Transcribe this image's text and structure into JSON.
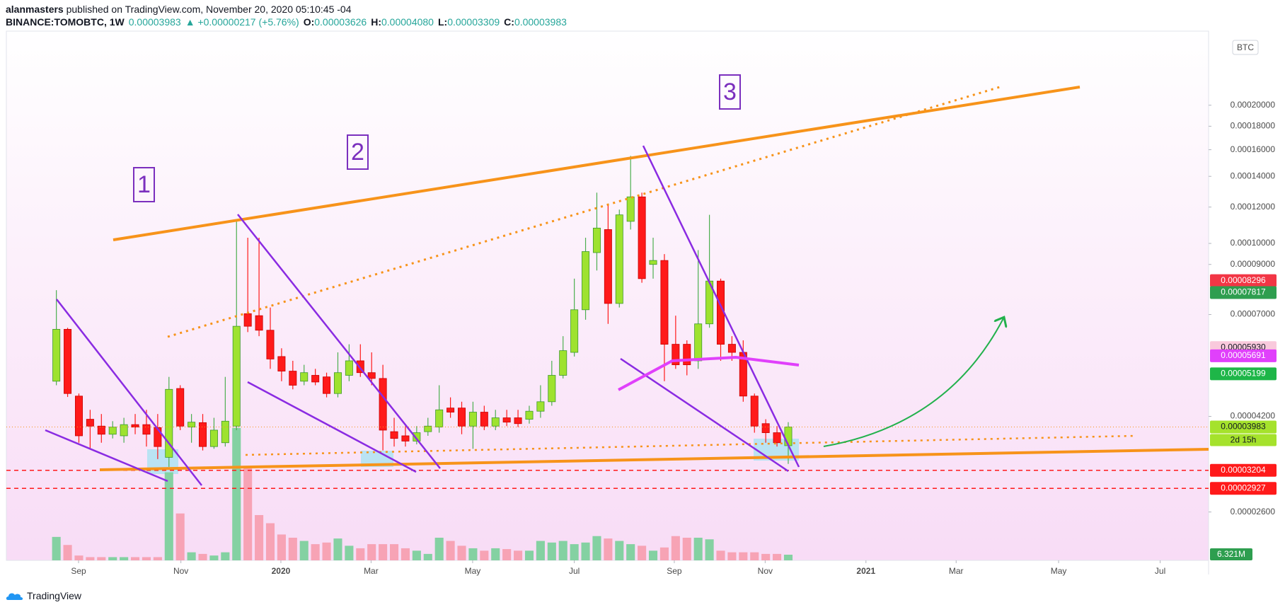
{
  "header": {
    "author": "alanmasters",
    "published": "published on TradingView.com, November 20, 2020 05:10:45 -04",
    "symbol": "BINANCE:TOMOBTC, 1W",
    "last": "0.00003983",
    "change": "▲ +0.00000217 (+5.76%)",
    "ohlc": [
      {
        "label": "O:",
        "value": "0.00003626"
      },
      {
        "label": "H:",
        "value": "0.00004080"
      },
      {
        "label": "L:",
        "value": "0.00003309"
      },
      {
        "label": "C:",
        "value": "0.00003983"
      }
    ]
  },
  "footer": {
    "brand": "TradingView"
  },
  "chart_data": {
    "type": "candlestick",
    "axis_unit": "BTC",
    "log_scale": true,
    "grid": false,
    "up_color": "#9ee22f",
    "down_color": "#ff1a1a",
    "open": [
      5.01e-05,
      6.5e-05,
      4.65e-05,
      4.14e-05,
      4e-05,
      3.84e-05,
      3.81e-05,
      4.03e-05,
      4.03e-05,
      3.97e-05,
      3.42e-05,
      4.83e-05,
      3.98e-05,
      4.07e-05,
      3.61e-05,
      3.68e-05,
      4e-05,
      7.03e-05,
      6.96e-05,
      6.47e-05,
      5.67e-05,
      5.27e-05,
      5.01e-05,
      5.16e-05,
      5.12e-05,
      4.71e-05,
      5.16e-05,
      5.55e-05,
      5.23e-05,
      5.08e-05,
      3.89e-05,
      3.81e-05,
      3.71e-05,
      3.89e-05,
      3.98e-05,
      4.38e-05,
      4.38e-05,
      4e-05,
      4.29e-05,
      4e-05,
      4.17e-05,
      4.17e-05,
      4.14e-05,
      4.31e-05,
      4.52e-05,
      5.16e-05,
      5.79e-05,
      7.17e-05,
      9.55e-05,
      0.0001072,
      7.4e-05,
      0.0001117,
      0.0001263,
      9e-05,
      9.18e-05,
      6.03e-05,
      6.03e-05,
      5.55e-05,
      6.68e-05,
      8.28e-05,
      6.03e-05,
      5.79e-05,
      4.65e-05,
      4.05e-05,
      3.87e-05,
      3.626e-05
    ],
    "high": [
      7.91e-05,
      6.55e-05,
      4.71e-05,
      4.34e-05,
      4.25e-05,
      4.1e-05,
      4.17e-05,
      4.25e-05,
      4.34e-05,
      4.25e-05,
      5.12e-05,
      4.91e-05,
      4.25e-05,
      4.25e-05,
      4.17e-05,
      5.12e-05,
      0.0001117,
      0.0001029,
      0.0001029,
      7.25e-05,
      5.91e-05,
      5.55e-05,
      5.44e-05,
      5.33e-05,
      5.23e-05,
      5.79e-05,
      6.03e-05,
      6.03e-05,
      5.79e-05,
      5.44e-05,
      4.17e-05,
      4e-05,
      4e-05,
      4.17e-05,
      4.91e-05,
      4.62e-05,
      4.52e-05,
      4.52e-05,
      4.43e-05,
      4.34e-05,
      4.34e-05,
      4.34e-05,
      4.43e-05,
      4.91e-05,
      5.55e-05,
      6.28e-05,
      8.38e-05,
      0.0001029,
      0.000129,
      0.0001212,
      0.0001185,
      0.0001551,
      0.000129,
      0.0001029,
      9.48e-05,
      6.96e-05,
      6.15e-05,
      9.67e-05,
      0.0001154,
      8.38e-05,
      6.28e-05,
      6.15e-05,
      4.71e-05,
      4.14e-05,
      4e-05,
      4.08e-05
    ],
    "low": [
      4.91e-05,
      4.63e-05,
      3.68e-05,
      3.57e-05,
      3.68e-05,
      3.76e-05,
      3.68e-05,
      3.84e-05,
      3.61e-05,
      3.39e-05,
      3.26e-05,
      3.92e-05,
      3.68e-05,
      3.54e-05,
      3.57e-05,
      3.61e-05,
      3.92e-05,
      6.41e-05,
      6.28e-05,
      5.33e-05,
      5.01e-05,
      4.81e-05,
      4.91e-05,
      4.91e-05,
      4.62e-05,
      4.62e-05,
      5.01e-05,
      5.12e-05,
      4.91e-05,
      3.54e-05,
      3.61e-05,
      3.61e-05,
      3.65e-05,
      3.81e-05,
      3.87e-05,
      4.17e-05,
      3.84e-05,
      3.57e-05,
      3.92e-05,
      3.92e-05,
      4e-05,
      3.98e-05,
      4.05e-05,
      4.17e-05,
      4.43e-05,
      5.08e-05,
      5.67e-05,
      6.82e-05,
      8.73e-05,
      6.68e-05,
      7.25e-05,
      0.0001072,
      8.21e-05,
      8.38e-05,
      5.01e-05,
      5.33e-05,
      5.16e-05,
      5.33e-05,
      6.55e-05,
      5.55e-05,
      5.55e-05,
      4.52e-05,
      3.87e-05,
      3.68e-05,
      3.61e-05,
      3.309e-05
    ],
    "close": [
      6.5e-05,
      4.71e-05,
      3.81e-05,
      4e-05,
      3.84e-05,
      3.98e-05,
      4.03e-05,
      3.98e-05,
      3.84e-05,
      3.61e-05,
      4.81e-05,
      4e-05,
      4.08e-05,
      3.61e-05,
      3.92e-05,
      4.1e-05,
      6.6e-05,
      6.6e-05,
      6.47e-05,
      5.6e-05,
      5.27e-05,
      4.91e-05,
      5.23e-05,
      4.99e-05,
      4.71e-05,
      5.23e-05,
      5.55e-05,
      5.23e-05,
      5.08e-05,
      3.92e-05,
      3.76e-05,
      3.71e-05,
      3.87e-05,
      4e-05,
      4.34e-05,
      4.29e-05,
      4e-05,
      4.29e-05,
      4e-05,
      4.17e-05,
      4.08e-05,
      4.05e-05,
      4.31e-05,
      4.52e-05,
      5.16e-05,
      5.84e-05,
      7.17e-05,
      9.6e-05,
      0.000108,
      7.4e-05,
      0.0001154,
      0.0001263,
      8.38e-05,
      9.18e-05,
      6.03e-05,
      5.44e-05,
      5.44e-05,
      6.68e-05,
      8.28e-05,
      6.03e-05,
      5.79e-05,
      4.65e-05,
      4e-05,
      3.87e-05,
      3.68e-05,
      3.983e-05
    ],
    "volume": {
      "up_color": "#84d1a2",
      "down_color": "#f7a3b5",
      "ylim": [
        0,
        200
      ],
      "last_label": "6.321M",
      "values": [
        26.2,
        17.2,
        5.4,
        3.6,
        3.6,
        3.6,
        3.6,
        3.6,
        3.6,
        3.6,
        98.4,
        52.4,
        9.0,
        7.2,
        5.4,
        9.0,
        148.1,
        105.6,
        50.6,
        41.5,
        28.9,
        25.3,
        21.7,
        18.1,
        19.9,
        24.4,
        16.3,
        13.5,
        18.1,
        18.1,
        18.1,
        13.5,
        10.8,
        7.2,
        25.3,
        21.7,
        16.3,
        13.5,
        10.8,
        13.5,
        12.6,
        10.8,
        10.8,
        21.7,
        19.9,
        21.7,
        18.1,
        19.9,
        27.1,
        24.4,
        21.7,
        18.1,
        16.3,
        10.8,
        14.4,
        27.1,
        25.3,
        25.3,
        23.5,
        10.8,
        9.0,
        9.0,
        9.0,
        7.2,
        7.2,
        6.321
      ]
    },
    "ylim": [
      2.04e-05,
      0.00029
    ],
    "yticks": [
      {
        "value": 0.0002,
        "label": "0.00020000"
      },
      {
        "value": 0.00018,
        "label": "0.00018000"
      },
      {
        "value": 0.00016,
        "label": "0.00016000"
      },
      {
        "value": 0.00014,
        "label": "0.00014000"
      },
      {
        "value": 0.00012,
        "label": "0.00012000"
      },
      {
        "value": 0.0001,
        "label": "0.00010000"
      },
      {
        "value": 9e-05,
        "label": "0.00009000"
      },
      {
        "value": 7e-05,
        "label": "0.00007000"
      },
      {
        "value": 4.2e-05,
        "label": "0.00004200"
      },
      {
        "value": 2.6e-05,
        "label": "0.00002600"
      }
    ],
    "xlim": [
      -4.44,
      102.33
    ],
    "xticks": [
      {
        "value": 1.97,
        "label": "Sep"
      },
      {
        "value": 11.06,
        "label": "Nov"
      },
      {
        "value": 19.94,
        "label": "2020"
      },
      {
        "value": 27.95,
        "label": "Mar"
      },
      {
        "value": 36.97,
        "label": "May"
      },
      {
        "value": 46.0,
        "label": "Jul"
      },
      {
        "value": 54.88,
        "label": "Sep"
      },
      {
        "value": 62.95,
        "label": "Nov"
      },
      {
        "value": 71.9,
        "label": "2021"
      },
      {
        "value": 79.91,
        "label": "Mar"
      },
      {
        "value": 89.01,
        "label": "May"
      },
      {
        "value": 98.03,
        "label": "Jul"
      }
    ],
    "price_labels": [
      {
        "value": 8.296e-05,
        "label": "0.00008296",
        "color": "#f23645",
        "text_color": "#ffffff"
      },
      {
        "value": 7.817e-05,
        "label": "0.00007817",
        "color": "#2e9e4f",
        "text_color": "#ffffff"
      },
      {
        "value": 5.93e-05,
        "label": "0.00005930",
        "color": "#f9c9dc",
        "text_color": "#131722"
      },
      {
        "value": 5.691e-05,
        "label": "0.00005691",
        "color": "#e040fb",
        "text_color": "#ffffff"
      },
      {
        "value": 5.199e-05,
        "label": "0.00005199",
        "color": "#1eb648",
        "text_color": "#ffffff"
      },
      {
        "value": 3.983e-05,
        "label": "0.00003983",
        "color": "#a5e22c",
        "text_color": "#131722",
        "line": "dotted"
      },
      {
        "value": 3.204e-05,
        "label": "0.00003204",
        "color": "#ff1a1a",
        "text_color": "#ffffff",
        "line": "dashed"
      },
      {
        "value": 2.927e-05,
        "label": "0.00002927",
        "color": "#ff1a1a",
        "text_color": "#ffffff",
        "line": "dashed"
      }
    ],
    "countdown": "2d 15h",
    "annotations": [
      "1",
      "2",
      "3"
    ]
  }
}
